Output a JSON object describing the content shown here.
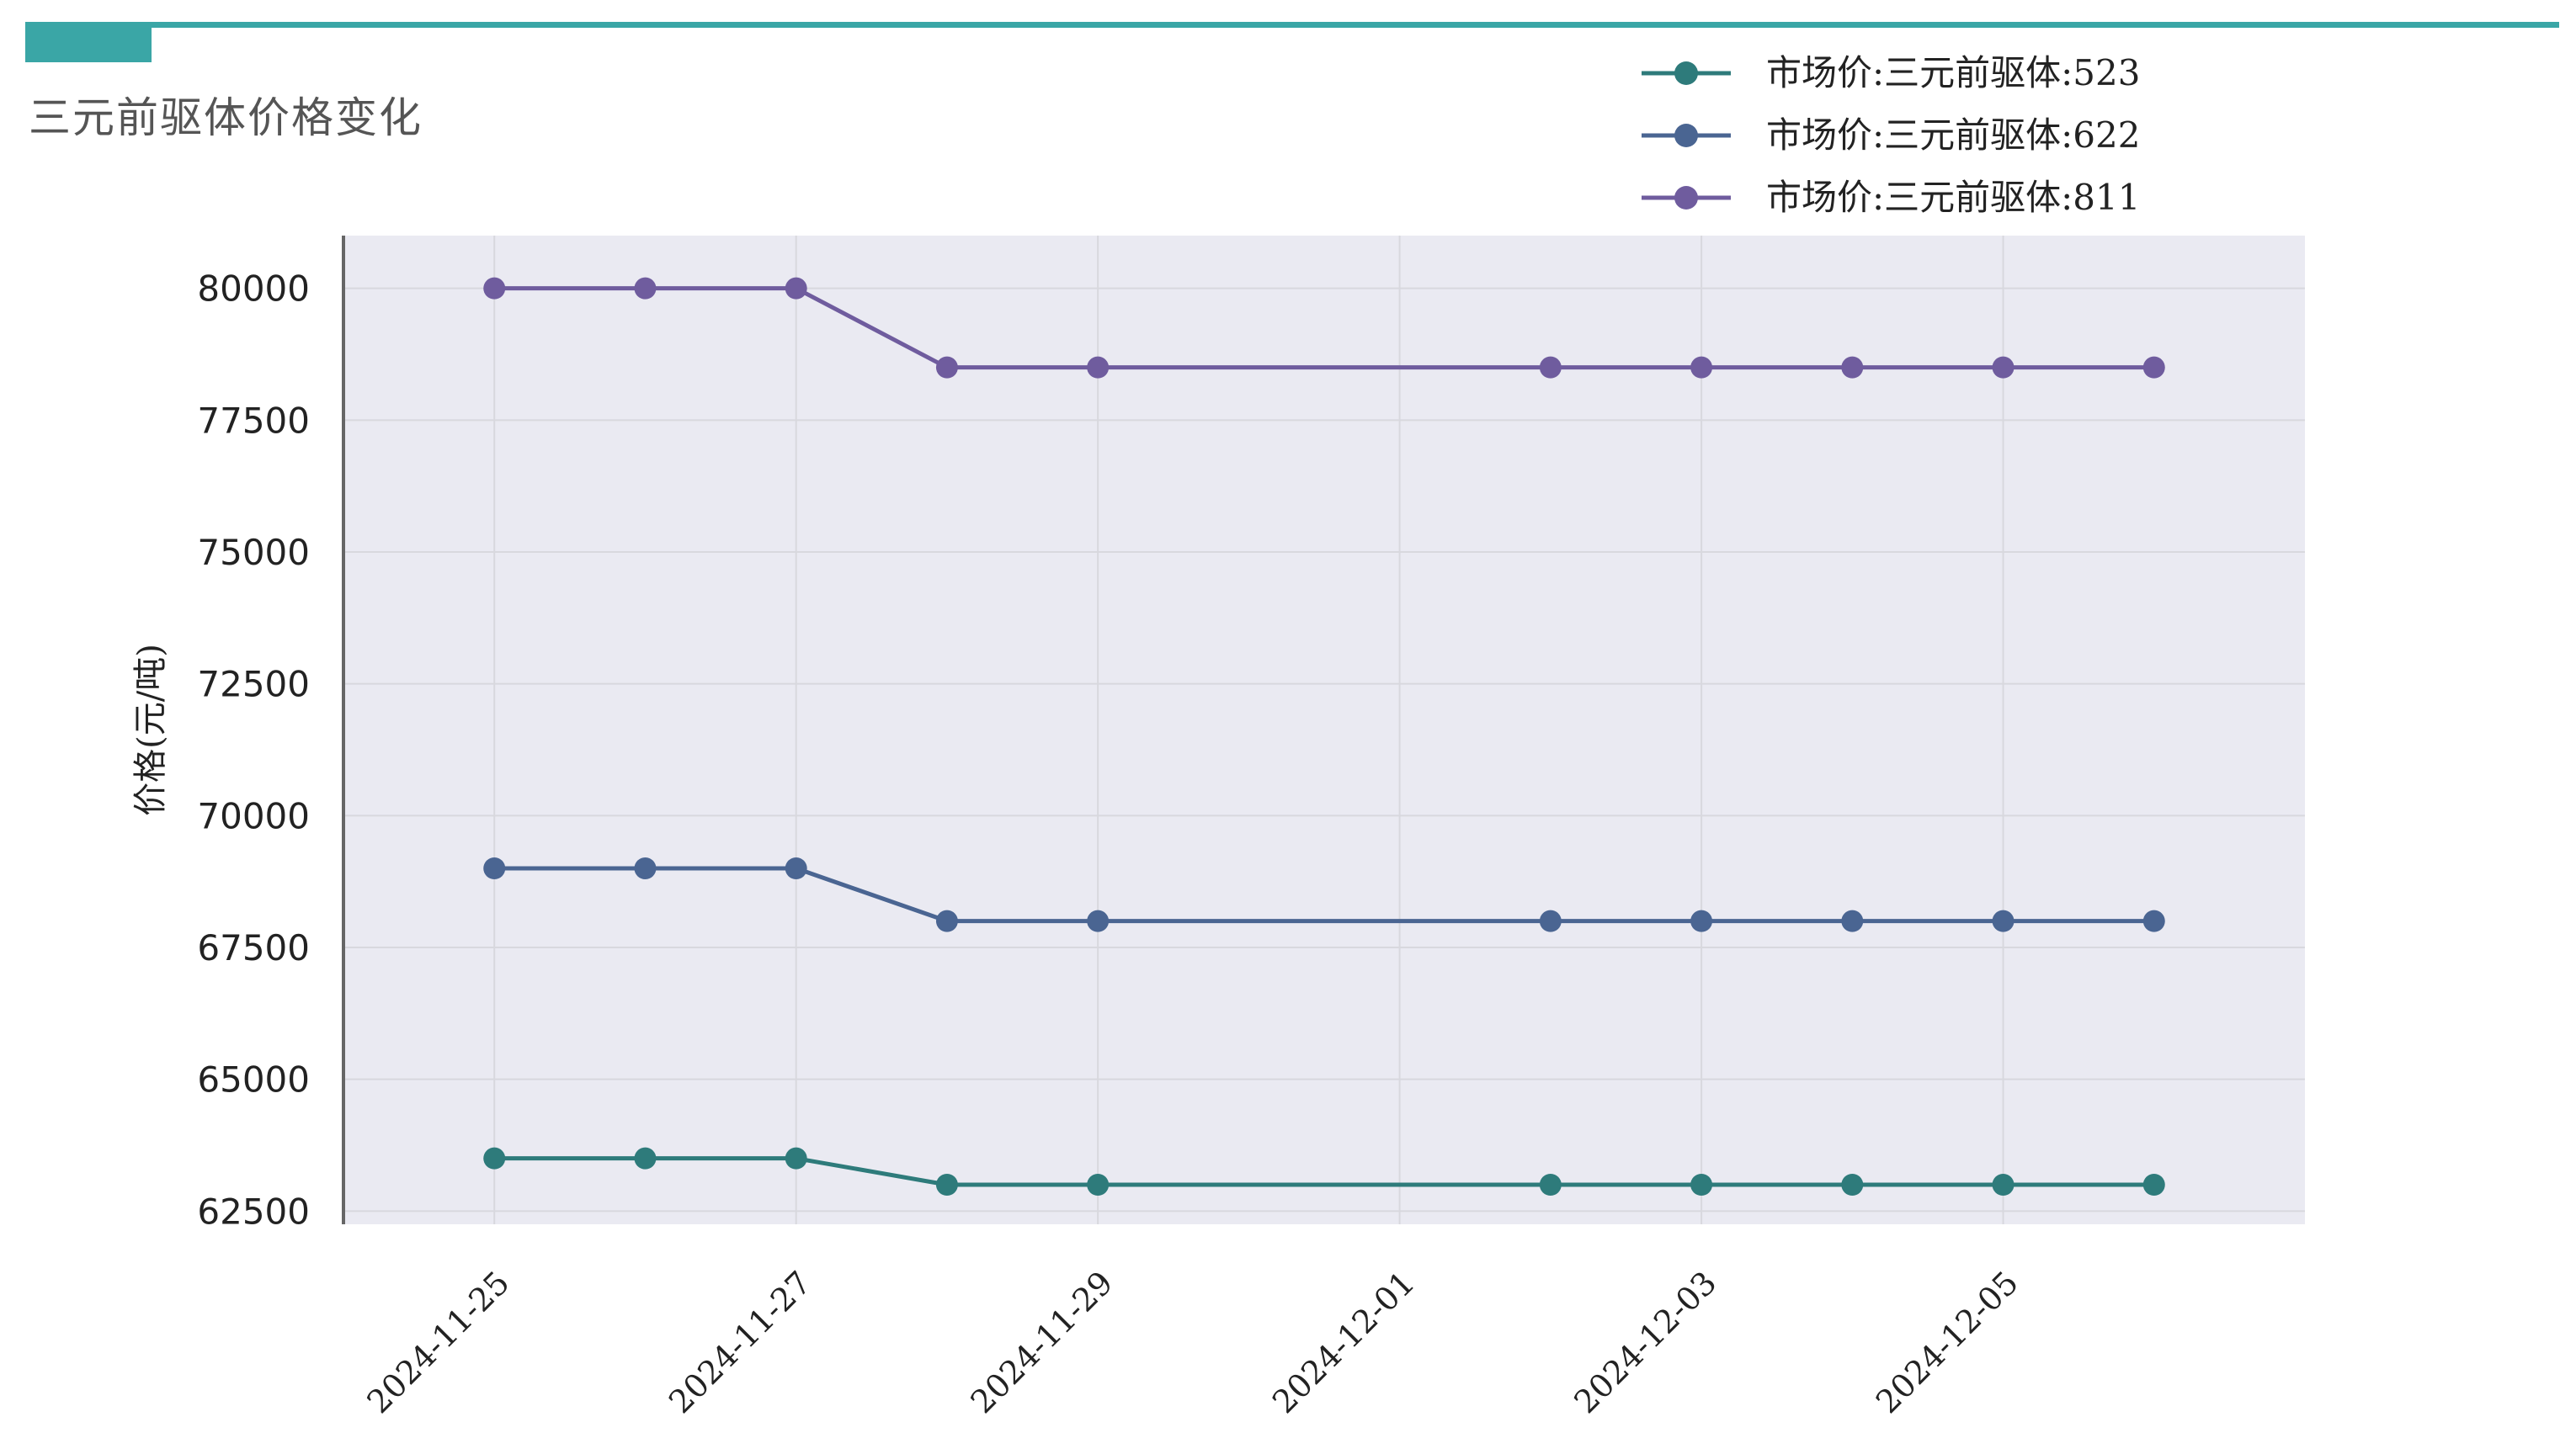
{
  "page": {
    "title": "三元前驱体价格变化",
    "accent": "#3aa6a6"
  },
  "chart_data": {
    "type": "line",
    "title": "三元前驱体价格变化",
    "xlabel": "",
    "ylabel": "价格(元/吨)",
    "x": [
      "2024-11-25",
      "2024-11-26",
      "2024-11-27",
      "2024-11-28",
      "2024-11-29",
      "2024-12-02",
      "2024-12-03",
      "2024-12-04",
      "2024-12-05",
      "2024-12-06"
    ],
    "x_tick_labels": [
      "2024-11-25",
      "2024-11-27",
      "2024-11-29",
      "2024-12-01",
      "2024-12-03",
      "2024-12-05"
    ],
    "y_tick_labels": [
      "62500",
      "65000",
      "67500",
      "70000",
      "72500",
      "75000",
      "77500",
      "80000"
    ],
    "ylim": [
      62250,
      81000
    ],
    "xlim": [
      "2024-11-24",
      "2024-12-07"
    ],
    "grid": true,
    "legend_position": "top-right",
    "plot_background": "#eaeaf2",
    "series": [
      {
        "name": "市场价:三元前驱体:523",
        "color": "#2e7b7b",
        "values": [
          63500,
          63500,
          63500,
          63000,
          63000,
          63000,
          63000,
          63000,
          63000,
          63000
        ]
      },
      {
        "name": "市场价:三元前驱体:622",
        "color": "#4a6592",
        "values": [
          69000,
          69000,
          69000,
          68000,
          68000,
          68000,
          68000,
          68000,
          68000,
          68000
        ]
      },
      {
        "name": "市场价:三元前驱体:811",
        "color": "#6f5c9e",
        "values": [
          80000,
          80000,
          80000,
          78500,
          78500,
          78500,
          78500,
          78500,
          78500,
          78500
        ]
      }
    ]
  }
}
